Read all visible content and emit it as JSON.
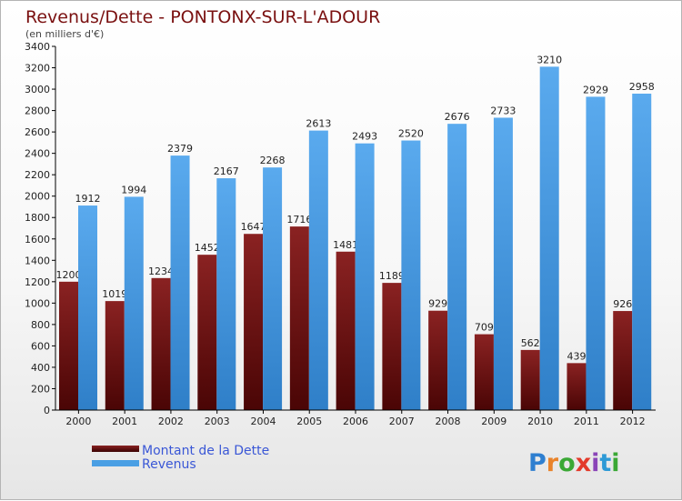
{
  "chart_data": {
    "type": "bar",
    "title": "Revenus/Dette - PONTONX-SUR-L'ADOUR",
    "subtitle": "(en milliers d'€)",
    "categories": [
      "2000",
      "2001",
      "2002",
      "2003",
      "2004",
      "2005",
      "2006",
      "2007",
      "2008",
      "2009",
      "2010",
      "2011",
      "2012"
    ],
    "series": [
      {
        "name": "Montant de la Dette",
        "color": "#7a1717",
        "values": [
          1200,
          1019,
          1234,
          1452,
          1647,
          1716,
          1481,
          1189,
          929,
          709,
          562,
          439,
          926
        ]
      },
      {
        "name": "Revenus",
        "color": "#4a9fe4",
        "values": [
          1912,
          1994,
          2379,
          2167,
          2268,
          2613,
          2493,
          2520,
          2676,
          2733,
          3210,
          2929,
          2958
        ]
      }
    ],
    "ylim": [
      0,
      3400
    ],
    "yticks": [
      0,
      200,
      400,
      600,
      800,
      1000,
      1200,
      1400,
      1600,
      1800,
      2000,
      2200,
      2400,
      2600,
      2800,
      3000,
      3200,
      3400
    ],
    "grid": false,
    "legend": "bottom-left"
  },
  "brand": {
    "text": "Proxiti",
    "letter_colors": [
      "#2e7fd0",
      "#e9832a",
      "#3aa835",
      "#e33a2a",
      "#8a45b8",
      "#2e9ad6",
      "#3aa835"
    ]
  }
}
